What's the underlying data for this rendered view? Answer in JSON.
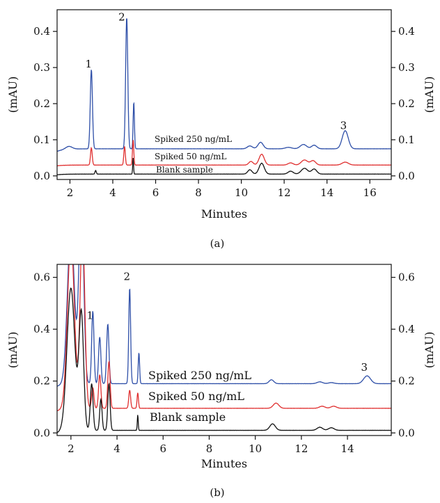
{
  "chart_data": [
    {
      "type": "line",
      "panel_label": "(a)",
      "xlabel": "Minutes",
      "ylabel_left": "(mAU)",
      "ylabel_right": "(mAU)",
      "xlim": [
        1.4,
        17.0
      ],
      "ylim": [
        -0.01,
        0.46
      ],
      "x_ticks": [
        "2",
        "4",
        "6",
        "8",
        "10",
        "12",
        "14",
        "16"
      ],
      "x_tick_values": [
        2,
        4,
        6,
        8,
        10,
        12,
        14,
        16
      ],
      "y_ticks": [
        "0.0",
        "0.1",
        "0.2",
        "0.3",
        "0.4"
      ],
      "y_tick_values": [
        0.0,
        0.1,
        0.2,
        0.3,
        0.4
      ],
      "grid": false,
      "peak_labels": [
        {
          "text": "1",
          "x": 3.0,
          "y": 0.3
        },
        {
          "text": "2",
          "x": 4.55,
          "y": 0.43
        },
        {
          "text": "3",
          "x": 14.9,
          "y": 0.13
        }
      ],
      "series": [
        {
          "name": "Spiked 250 ng/mL",
          "color": "#2e4fa8",
          "baseline": 0.075,
          "peaks": [
            [
              1.95,
              0.008,
              0.15
            ],
            [
              3.0,
              0.22,
              0.05
            ],
            [
              4.65,
              0.365,
              0.05
            ],
            [
              4.98,
              0.13,
              0.03
            ],
            [
              10.4,
              0.008,
              0.12
            ],
            [
              10.9,
              0.018,
              0.12
            ],
            [
              12.2,
              0.004,
              0.15
            ],
            [
              12.9,
              0.012,
              0.15
            ],
            [
              13.4,
              0.01,
              0.12
            ],
            [
              14.85,
              0.05,
              0.14
            ]
          ],
          "start_value": 0.068
        },
        {
          "name": "Spiked 50 ng/mL",
          "color": "#e03030",
          "baseline": 0.03,
          "peaks": [
            [
              3.0,
              0.048,
              0.04
            ],
            [
              4.55,
              0.052,
              0.035
            ],
            [
              4.95,
              0.07,
              0.03
            ],
            [
              10.45,
              0.01,
              0.1
            ],
            [
              10.95,
              0.03,
              0.12
            ],
            [
              12.3,
              0.006,
              0.12
            ],
            [
              12.95,
              0.014,
              0.15
            ],
            [
              13.35,
              0.012,
              0.12
            ],
            [
              14.85,
              0.008,
              0.15
            ]
          ],
          "start_value": 0.028
        },
        {
          "name": "Blank sample",
          "color": "#111111",
          "baseline": 0.005,
          "peaks": [
            [
              3.2,
              0.01,
              0.03
            ],
            [
              4.95,
              0.045,
              0.02
            ],
            [
              10.4,
              0.012,
              0.1
            ],
            [
              10.95,
              0.03,
              0.12
            ],
            [
              12.3,
              0.008,
              0.12
            ],
            [
              12.95,
              0.016,
              0.15
            ],
            [
              13.4,
              0.014,
              0.12
            ]
          ],
          "start_value": 0.003
        }
      ]
    },
    {
      "type": "line",
      "panel_label": "(b)",
      "xlabel": "Minutes",
      "ylabel_left": "(mAU)",
      "ylabel_right": "(mAU)",
      "xlim": [
        1.4,
        15.9
      ],
      "ylim": [
        -0.01,
        0.65
      ],
      "x_ticks": [
        "2",
        "4",
        "6",
        "8",
        "10",
        "12",
        "14"
      ],
      "x_tick_values": [
        2,
        4,
        6,
        8,
        10,
        12,
        14
      ],
      "y_ticks": [
        "0.0",
        "0.2",
        "0.4",
        "0.6"
      ],
      "y_tick_values": [
        0.0,
        0.2,
        0.4,
        0.6
      ],
      "grid": false,
      "peak_labels": [
        {
          "text": "1",
          "x": 2.95,
          "y": 0.44
        },
        {
          "text": "2",
          "x": 4.55,
          "y": 0.59
        },
        {
          "text": "3",
          "x": 14.85,
          "y": 0.24
        }
      ],
      "series": [
        {
          "name": "Spiked 250 ng/mL",
          "color": "#2e4fa8",
          "baseline": 0.19,
          "peaks": [
            [
              2.0,
              0.6,
              0.15
            ],
            [
              2.45,
              0.75,
              0.1
            ],
            [
              2.95,
              0.28,
              0.05
            ],
            [
              3.25,
              0.18,
              0.05
            ],
            [
              3.6,
              0.23,
              0.05
            ],
            [
              4.55,
              0.37,
              0.04
            ],
            [
              4.95,
              0.12,
              0.03
            ],
            [
              10.7,
              0.015,
              0.1
            ],
            [
              12.8,
              0.007,
              0.12
            ],
            [
              13.3,
              0.004,
              0.12
            ],
            [
              14.85,
              0.03,
              0.15
            ]
          ],
          "start_value": 0.18
        },
        {
          "name": "Spiked 50 ng/mL",
          "color": "#e03030",
          "baseline": 0.095,
          "peaks": [
            [
              2.0,
              0.65,
              0.15
            ],
            [
              2.5,
              0.7,
              0.1
            ],
            [
              2.95,
              0.08,
              0.05
            ],
            [
              3.25,
              0.13,
              0.05
            ],
            [
              3.65,
              0.18,
              0.05
            ],
            [
              4.55,
              0.07,
              0.04
            ],
            [
              4.9,
              0.06,
              0.03
            ],
            [
              10.9,
              0.02,
              0.12
            ],
            [
              12.9,
              0.008,
              0.12
            ],
            [
              13.4,
              0.008,
              0.12
            ]
          ],
          "start_value": 0.085
        },
        {
          "name": "Blank sample",
          "color": "#111111",
          "baseline": 0.01,
          "peaks": [
            [
              2.0,
              0.55,
              0.17
            ],
            [
              2.45,
              0.45,
              0.1
            ],
            [
              2.9,
              0.18,
              0.06
            ],
            [
              3.3,
              0.12,
              0.05
            ],
            [
              3.65,
              0.18,
              0.05
            ],
            [
              4.9,
              0.06,
              0.02
            ],
            [
              10.75,
              0.025,
              0.12
            ],
            [
              12.8,
              0.012,
              0.12
            ],
            [
              13.3,
              0.01,
              0.12
            ]
          ],
          "start_value": 0.0
        }
      ]
    }
  ]
}
